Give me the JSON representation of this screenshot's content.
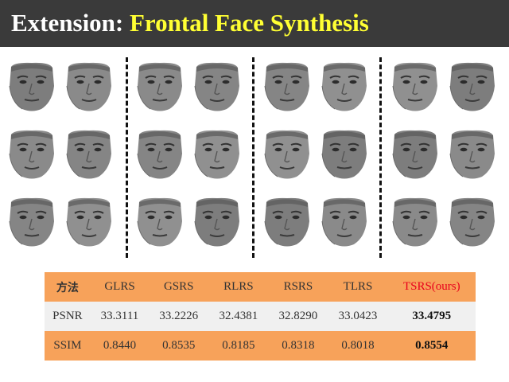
{
  "title": {
    "prefix": "Extension: ",
    "highlight": "Frontal Face Synthesis"
  },
  "figure": {
    "groups": 4,
    "rows": 3,
    "pairs_per_group": 1
  },
  "table": {
    "headers": [
      "方法",
      "GLRS",
      "GSRS",
      "RLRS",
      "RSRS",
      "TLRS",
      "TSRS(ours)"
    ],
    "rows": [
      {
        "metric": "PSNR",
        "values": [
          "33.3111",
          "33.2226",
          "32.4381",
          "32.8290",
          "33.0423",
          "33.4795"
        ]
      },
      {
        "metric": "SSIM",
        "values": [
          "0.8440",
          "0.8535",
          "0.8185",
          "0.8318",
          "0.8018",
          "0.8554"
        ]
      }
    ]
  },
  "colors": {
    "title_bar": "#3a3a3a",
    "title_highlight": "#ffff33",
    "table_accent": "#f7a25a",
    "ours_label": "#e8001c"
  }
}
